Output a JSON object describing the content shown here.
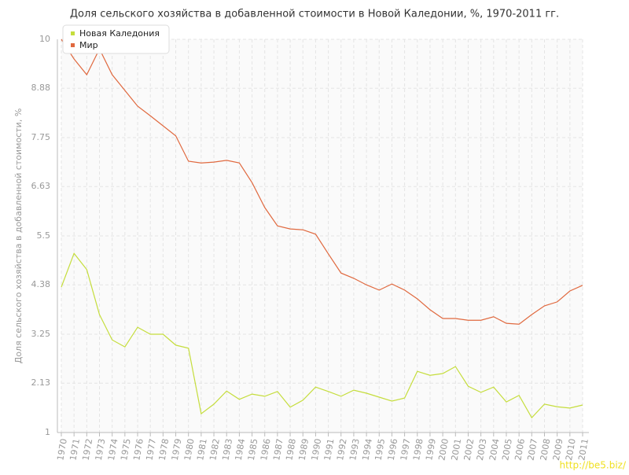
{
  "chart_data": {
    "type": "line",
    "title": "Доля сельского хозяйства в добавленной стоимости в Новой Каледонии, %, 1970-2011 гг.",
    "y_label": "Доля сельского хозяйства в добавленной стоимости, %",
    "watermark": "http://be5.biz/",
    "categories": [
      "1970",
      "1971",
      "1972",
      "1973",
      "1974",
      "1975",
      "1976",
      "1977",
      "1978",
      "1979",
      "1980",
      "1981",
      "1982",
      "1983",
      "1984",
      "1985",
      "1986",
      "1987",
      "1988",
      "1989",
      "1990",
      "1991",
      "1992",
      "1993",
      "1994",
      "1995",
      "1996",
      "1997",
      "1998",
      "1999",
      "2000",
      "2001",
      "2002",
      "2003",
      "2004",
      "2005",
      "2006",
      "2007",
      "2008",
      "2009",
      "2010",
      "2011"
    ],
    "series": [
      {
        "name": "Новая Каледония",
        "color": "#c5dd3c",
        "values": [
          4.33,
          5.1,
          4.73,
          3.7,
          3.12,
          2.96,
          3.41,
          3.25,
          3.25,
          3.0,
          2.93,
          1.43,
          1.65,
          1.95,
          1.76,
          1.88,
          1.83,
          1.94,
          1.58,
          1.74,
          2.04,
          1.94,
          1.83,
          1.97,
          1.9,
          1.81,
          1.72,
          1.79,
          2.4,
          2.31,
          2.35,
          2.51,
          2.06,
          1.92,
          2.04,
          1.7,
          1.85,
          1.34,
          1.65,
          1.59,
          1.56,
          1.63
        ]
      },
      {
        "name": "Мир",
        "color": "#e0693f",
        "values": [
          10.0,
          9.55,
          9.19,
          9.78,
          9.19,
          8.83,
          8.47,
          8.25,
          8.02,
          7.79,
          7.21,
          7.17,
          7.19,
          7.23,
          7.17,
          6.72,
          6.15,
          5.73,
          5.66,
          5.64,
          5.54,
          5.09,
          4.65,
          4.53,
          4.38,
          4.26,
          4.4,
          4.26,
          4.06,
          3.81,
          3.61,
          3.61,
          3.57,
          3.57,
          3.65,
          3.5,
          3.48,
          3.7,
          3.9,
          3.99,
          4.24,
          4.37
        ]
      }
    ],
    "ylim": [
      1,
      10
    ],
    "yticks": [
      1,
      2.13,
      3.25,
      4.38,
      5.5,
      6.63,
      7.75,
      8.88,
      10
    ],
    "grid": true,
    "legend": "top-left"
  }
}
